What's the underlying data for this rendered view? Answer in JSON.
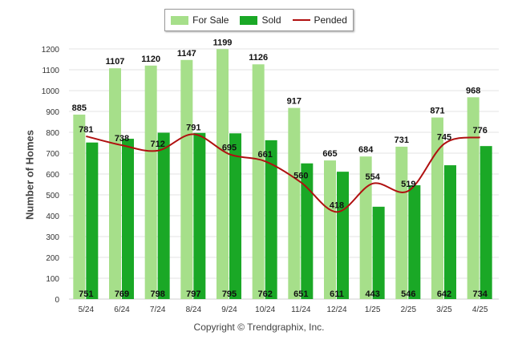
{
  "legend": {
    "for_sale": "For Sale",
    "sold": "Sold",
    "pended": "Pended"
  },
  "colors": {
    "for_sale": "#a6df8a",
    "sold": "#1aa826",
    "pended": "#b01010",
    "grid": "#e3e3e3",
    "axis_text": "#333333"
  },
  "copyright": "Copyright © Trendgraphix, Inc.",
  "chart_data": {
    "type": "bar",
    "categories": [
      "5/24",
      "6/24",
      "7/24",
      "8/24",
      "9/24",
      "10/24",
      "11/24",
      "12/24",
      "1/25",
      "2/25",
      "3/25",
      "4/25"
    ],
    "series": [
      {
        "name": "For Sale",
        "type": "bar",
        "values": [
          885,
          1107,
          1120,
          1147,
          1199,
          1126,
          917,
          665,
          684,
          731,
          871,
          968
        ]
      },
      {
        "name": "Sold",
        "type": "bar",
        "values": [
          751,
          769,
          798,
          797,
          795,
          762,
          651,
          611,
          443,
          546,
          642,
          734
        ]
      },
      {
        "name": "Pended",
        "type": "line",
        "values": [
          781,
          738,
          712,
          791,
          695,
          661,
          560,
          418,
          554,
          519,
          745,
          776
        ]
      }
    ],
    "ylabel": "Number of Homes",
    "xlabel": "",
    "ylim": [
      0,
      1200
    ],
    "yticks": [
      0,
      100,
      200,
      300,
      400,
      500,
      600,
      700,
      800,
      900,
      1000,
      1100,
      1200
    ],
    "grid": true,
    "legend_position": "top-center"
  }
}
